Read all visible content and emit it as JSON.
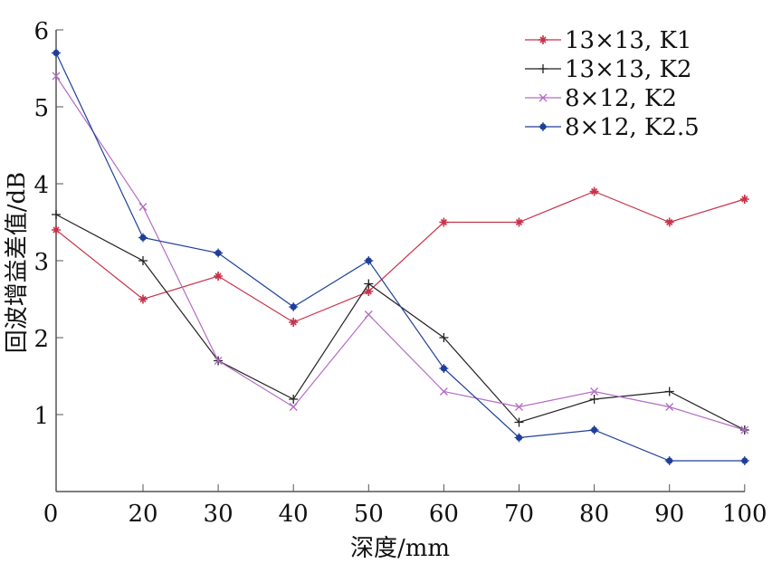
{
  "chart_data": {
    "type": "line",
    "xlabel": "深度/mm",
    "ylabel": "回波增益差值/dB",
    "x_tick_labels": [
      "0",
      "20",
      "30",
      "40",
      "50",
      "60",
      "70",
      "80",
      "90",
      "100"
    ],
    "y_ticks": [
      1,
      2,
      3,
      4,
      5,
      6
    ],
    "ylim": [
      0,
      6
    ],
    "grid": false,
    "legend_placement": "top-right",
    "series": [
      {
        "name": "13×13, K1",
        "color": "#c8324a",
        "marker": "star",
        "values": [
          3.4,
          2.5,
          2.8,
          2.2,
          2.6,
          3.5,
          3.5,
          3.9,
          3.5,
          3.8
        ]
      },
      {
        "name": "13×13, K2",
        "color": "#222222",
        "marker": "plus",
        "values": [
          3.6,
          3.0,
          1.7,
          1.2,
          2.7,
          2.0,
          0.9,
          1.2,
          1.3,
          0.8
        ]
      },
      {
        "name": "8×12, K2",
        "color": "#b46cc4",
        "marker": "x",
        "values": [
          5.4,
          3.7,
          1.7,
          1.1,
          2.3,
          1.3,
          1.1,
          1.3,
          1.1,
          0.8
        ]
      },
      {
        "name": "8×12, K2.5",
        "color": "#1f3f9a",
        "marker": "dot",
        "values": [
          5.7,
          3.3,
          3.1,
          2.4,
          3.0,
          1.6,
          0.7,
          0.8,
          0.4,
          0.4
        ]
      }
    ]
  }
}
